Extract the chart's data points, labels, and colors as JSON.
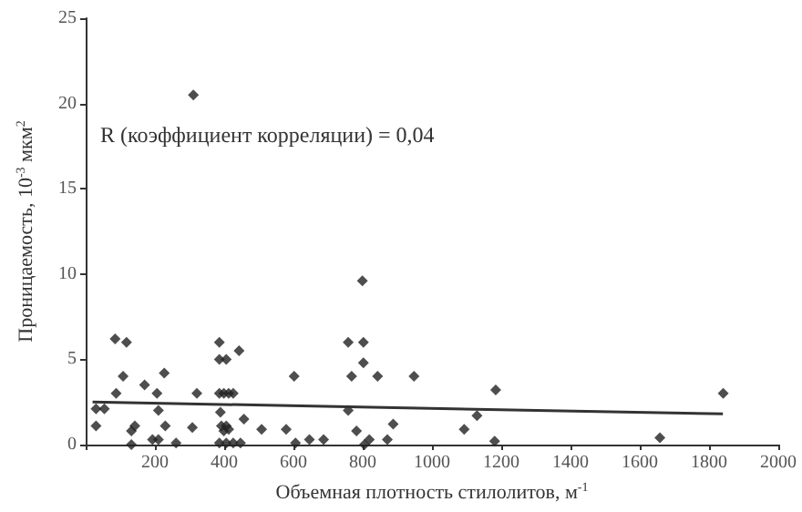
{
  "chart_data": {
    "type": "scatter",
    "xlabel": "Объемная плотность стилолитов, м$^{-1}$",
    "ylabel": "Проницаемость, 10$^{-3}$ мкм$^{2}$",
    "annotations": [
      "R (коэффициент корреляции) = 0,04"
    ],
    "xlim": [
      0,
      2000
    ],
    "xticks": [
      {
        "value": 0,
        "label": null
      },
      200,
      400,
      600,
      800,
      1000,
      1200,
      1400,
      1600,
      1800,
      2000
    ],
    "ylim": [
      0,
      25
    ],
    "yticks": [
      0,
      5,
      10,
      15,
      20,
      25
    ],
    "marker": "diamond",
    "series": [
      {
        "color": "#222222",
        "x": [
          30,
          30,
          54,
          85,
          118,
          88,
          108,
          132,
          142,
          132,
          170,
          206,
          210,
          227,
          193,
          210,
          230,
          261,
          308,
          321,
          311,
          386,
          386,
          406,
          443,
          386,
          399,
          413,
          426,
          389,
          392,
          406,
          413,
          399,
          386,
          406,
          426,
          447,
          457,
          508,
          579,
          606,
          602,
          646,
          687,
          758,
          802,
          799,
          802,
          768,
          843,
          758,
          782,
          805,
          819,
          888,
          871,
          948,
          1184,
          1093,
          1130,
          1181,
          1658,
          1841
        ],
        "values": [
          1.1,
          2.1,
          2.1,
          6.2,
          6.0,
          3.0,
          4.0,
          0.8,
          1.1,
          0,
          3.5,
          3.0,
          2.0,
          4.2,
          0.3,
          0.3,
          1.1,
          0.1,
          1.0,
          3.0,
          20.5,
          6.0,
          5.0,
          5.0,
          5.5,
          3.0,
          3.0,
          3.0,
          3.0,
          1.9,
          1.1,
          1.1,
          0.9,
          0.8,
          0.1,
          0.1,
          0.1,
          0.1,
          1.5,
          0.9,
          0.9,
          0.1,
          4.0,
          0.3,
          0.3,
          6.0,
          6.0,
          9.6,
          4.8,
          4.0,
          4.0,
          2.0,
          0.8,
          0,
          0.3,
          1.2,
          0.3,
          4.0,
          3.2,
          0.9,
          1.7,
          0.2,
          0.4,
          3.0
        ]
      },
      {
        "type": "line",
        "color": "#333333",
        "marker": "none",
        "x": [
          20,
          1840
        ],
        "values": [
          2.5,
          1.8
        ]
      }
    ]
  }
}
